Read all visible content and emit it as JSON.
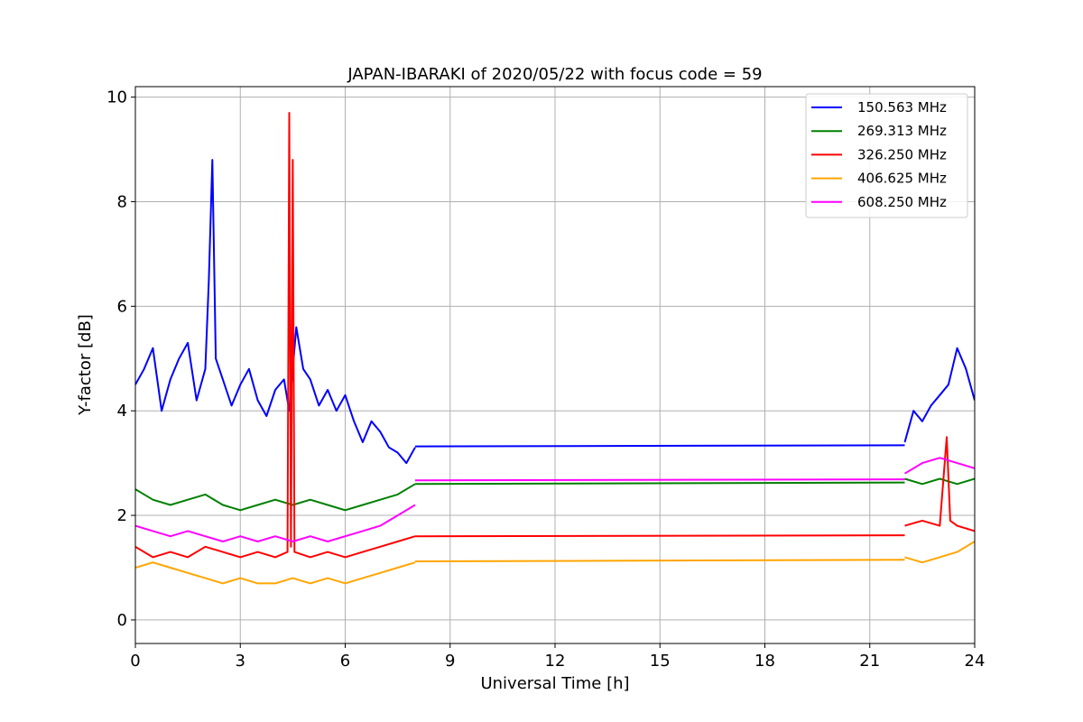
{
  "chart_data": {
    "type": "line",
    "title": "JAPAN-IBARAKI of 2020/05/22 with focus code = 59",
    "xlabel": "Universal Time [h]",
    "ylabel": "Y-factor [dB]",
    "xlim": [
      0,
      24
    ],
    "ylim": [
      -0.45,
      10.2
    ],
    "xticks": [
      0,
      3,
      6,
      9,
      12,
      15,
      18,
      21,
      24
    ],
    "yticks": [
      0,
      2,
      4,
      6,
      8,
      10
    ],
    "grid": true,
    "legend_position": "top-right",
    "series": [
      {
        "name": "150.563 MHz",
        "color": "#0000ff",
        "segments": [
          [
            [
              0.0,
              4.5
            ],
            [
              0.25,
              4.8
            ],
            [
              0.5,
              5.2
            ],
            [
              0.75,
              4.0
            ],
            [
              1.0,
              4.6
            ],
            [
              1.25,
              5.0
            ],
            [
              1.5,
              5.3
            ],
            [
              1.75,
              4.2
            ],
            [
              2.0,
              4.8
            ],
            [
              2.1,
              6.5
            ],
            [
              2.2,
              8.8
            ],
            [
              2.3,
              5.0
            ],
            [
              2.5,
              4.6
            ],
            [
              2.75,
              4.1
            ],
            [
              3.0,
              4.5
            ],
            [
              3.25,
              4.8
            ],
            [
              3.5,
              4.2
            ],
            [
              3.75,
              3.9
            ],
            [
              4.0,
              4.4
            ],
            [
              4.25,
              4.6
            ],
            [
              4.4,
              4.0
            ],
            [
              4.6,
              5.6
            ],
            [
              4.8,
              4.8
            ],
            [
              5.0,
              4.6
            ],
            [
              5.25,
              4.1
            ],
            [
              5.5,
              4.4
            ],
            [
              5.75,
              4.0
            ],
            [
              6.0,
              4.3
            ],
            [
              6.25,
              3.8
            ],
            [
              6.5,
              3.4
            ],
            [
              6.75,
              3.8
            ],
            [
              7.0,
              3.6
            ],
            [
              7.25,
              3.3
            ],
            [
              7.5,
              3.2
            ],
            [
              7.75,
              3.0
            ],
            [
              8.0,
              3.3
            ]
          ],
          [
            [
              8.0,
              3.32
            ],
            [
              22.0,
              3.34
            ]
          ],
          [
            [
              22.0,
              3.4
            ],
            [
              22.25,
              4.0
            ],
            [
              22.5,
              3.8
            ],
            [
              22.75,
              4.1
            ],
            [
              23.0,
              4.3
            ],
            [
              23.25,
              4.5
            ],
            [
              23.5,
              5.2
            ],
            [
              23.75,
              4.8
            ],
            [
              24.0,
              4.2
            ]
          ]
        ]
      },
      {
        "name": "269.313 MHz",
        "color": "#008000",
        "segments": [
          [
            [
              0.0,
              2.5
            ],
            [
              0.5,
              2.3
            ],
            [
              1.0,
              2.2
            ],
            [
              1.5,
              2.3
            ],
            [
              2.0,
              2.4
            ],
            [
              2.5,
              2.2
            ],
            [
              3.0,
              2.1
            ],
            [
              3.5,
              2.2
            ],
            [
              4.0,
              2.3
            ],
            [
              4.5,
              2.2
            ],
            [
              5.0,
              2.3
            ],
            [
              5.5,
              2.2
            ],
            [
              6.0,
              2.1
            ],
            [
              6.5,
              2.2
            ],
            [
              7.0,
              2.3
            ],
            [
              7.5,
              2.4
            ],
            [
              8.0,
              2.6
            ]
          ],
          [
            [
              8.0,
              2.6
            ],
            [
              22.0,
              2.63
            ]
          ],
          [
            [
              22.0,
              2.7
            ],
            [
              22.5,
              2.6
            ],
            [
              23.0,
              2.7
            ],
            [
              23.5,
              2.6
            ],
            [
              24.0,
              2.7
            ]
          ]
        ]
      },
      {
        "name": "326.250 MHz",
        "color": "#ff0000",
        "segments": [
          [
            [
              0.0,
              1.4
            ],
            [
              0.5,
              1.2
            ],
            [
              1.0,
              1.3
            ],
            [
              1.5,
              1.2
            ],
            [
              2.0,
              1.4
            ],
            [
              2.5,
              1.3
            ],
            [
              3.0,
              1.2
            ],
            [
              3.5,
              1.3
            ],
            [
              4.0,
              1.2
            ],
            [
              4.35,
              1.3
            ],
            [
              4.4,
              9.7
            ],
            [
              4.45,
              1.4
            ],
            [
              4.5,
              8.8
            ],
            [
              4.55,
              1.3
            ],
            [
              5.0,
              1.2
            ],
            [
              5.5,
              1.3
            ],
            [
              6.0,
              1.2
            ],
            [
              6.5,
              1.3
            ],
            [
              7.0,
              1.4
            ],
            [
              7.5,
              1.5
            ],
            [
              8.0,
              1.6
            ]
          ],
          [
            [
              8.0,
              1.6
            ],
            [
              22.0,
              1.62
            ]
          ],
          [
            [
              22.0,
              1.8
            ],
            [
              22.5,
              1.9
            ],
            [
              23.0,
              1.8
            ],
            [
              23.2,
              3.5
            ],
            [
              23.3,
              1.9
            ],
            [
              23.5,
              1.8
            ],
            [
              24.0,
              1.7
            ]
          ]
        ]
      },
      {
        "name": "406.625 MHz",
        "color": "#ffa500",
        "segments": [
          [
            [
              0.0,
              1.0
            ],
            [
              0.5,
              1.1
            ],
            [
              1.0,
              1.0
            ],
            [
              1.5,
              0.9
            ],
            [
              2.0,
              0.8
            ],
            [
              2.5,
              0.7
            ],
            [
              3.0,
              0.8
            ],
            [
              3.5,
              0.7
            ],
            [
              4.0,
              0.7
            ],
            [
              4.5,
              0.8
            ],
            [
              5.0,
              0.7
            ],
            [
              5.5,
              0.8
            ],
            [
              6.0,
              0.7
            ],
            [
              6.5,
              0.8
            ],
            [
              7.0,
              0.9
            ],
            [
              7.5,
              1.0
            ],
            [
              8.0,
              1.1
            ]
          ],
          [
            [
              8.0,
              1.12
            ],
            [
              22.0,
              1.15
            ]
          ],
          [
            [
              22.0,
              1.2
            ],
            [
              22.5,
              1.1
            ],
            [
              23.0,
              1.2
            ],
            [
              23.5,
              1.3
            ],
            [
              24.0,
              1.5
            ]
          ]
        ]
      },
      {
        "name": "608.250 MHz",
        "color": "#ff00ff",
        "segments": [
          [
            [
              0.0,
              1.8
            ],
            [
              0.5,
              1.7
            ],
            [
              1.0,
              1.6
            ],
            [
              1.5,
              1.7
            ],
            [
              2.0,
              1.6
            ],
            [
              2.5,
              1.5
            ],
            [
              3.0,
              1.6
            ],
            [
              3.5,
              1.5
            ],
            [
              4.0,
              1.6
            ],
            [
              4.5,
              1.5
            ],
            [
              5.0,
              1.6
            ],
            [
              5.5,
              1.5
            ],
            [
              6.0,
              1.6
            ],
            [
              6.5,
              1.7
            ],
            [
              7.0,
              1.8
            ],
            [
              7.5,
              2.0
            ],
            [
              8.0,
              2.2
            ]
          ],
          [
            [
              8.0,
              2.67
            ],
            [
              22.0,
              2.69
            ]
          ],
          [
            [
              22.0,
              2.8
            ],
            [
              22.5,
              3.0
            ],
            [
              23.0,
              3.1
            ],
            [
              23.5,
              3.0
            ],
            [
              24.0,
              2.9
            ]
          ]
        ]
      }
    ]
  }
}
